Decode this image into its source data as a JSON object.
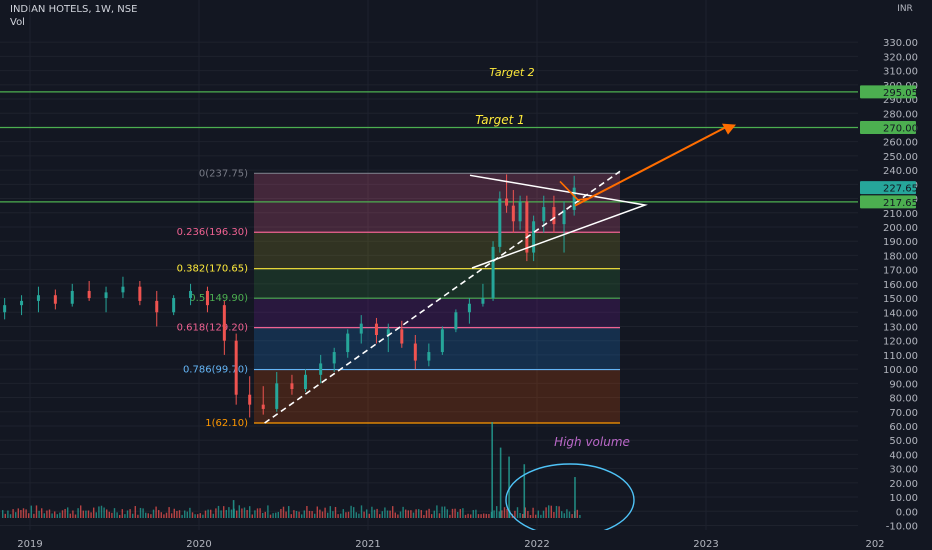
{
  "header": {
    "title": "INDIAN HOTELS, 1W, NSE",
    "volume_label": "Vol"
  },
  "chart_data": {
    "type": "candlestick",
    "symbol": "INDIAN HOTELS",
    "interval": "1W",
    "exchange": "NSE",
    "currency": "INR",
    "price_axis": {
      "min": -10,
      "max": 330,
      "step": 10
    },
    "time_axis_labels": [
      "2019",
      "2020",
      "2021",
      "2022",
      "2023",
      "202"
    ],
    "price_labels": [
      {
        "value": 295.05,
        "text": "295.05",
        "color": "#4caf50"
      },
      {
        "value": 270,
        "text": "270.00",
        "color": "#4caf50"
      },
      {
        "value": 227.65,
        "text": "227.65",
        "color": "#26a69a"
      },
      {
        "value": 217.65,
        "text": "217.65",
        "color": "#4caf50"
      }
    ],
    "horizontal_lines": [
      295.05,
      270,
      217.65
    ],
    "fibonacci_levels": [
      {
        "ratio": "0",
        "price": 237.75,
        "label": "0(237.75)",
        "color": "#787b86"
      },
      {
        "ratio": "0.236",
        "price": 196.3,
        "label": "0.236(196.30)",
        "color": "#f06292"
      },
      {
        "ratio": "0.382",
        "price": 170.65,
        "label": "0.382(170.65)",
        "color": "#ffeb3b"
      },
      {
        "ratio": "0.5",
        "price": 149.9,
        "label": "0.5(149.90)",
        "color": "#4caf50"
      },
      {
        "ratio": "0.618",
        "price": 129.2,
        "label": "0.618(129.20)",
        "color": "#f06292"
      },
      {
        "ratio": "0.786",
        "price": 99.7,
        "label": "0.786(99.70)",
        "color": "#64b5f6"
      },
      {
        "ratio": "1",
        "price": 62.1,
        "label": "1(62.10)",
        "color": "#ff9800"
      }
    ],
    "annotations": [
      "Target 2",
      "Target 1",
      "High volume"
    ],
    "visible_candles": [
      [
        2018.85,
        140,
        150,
        135,
        145
      ],
      [
        2018.95,
        145,
        152,
        138,
        148
      ],
      [
        2019.05,
        148,
        158,
        140,
        152
      ],
      [
        2019.15,
        152,
        156,
        142,
        146
      ],
      [
        2019.25,
        146,
        160,
        144,
        155
      ],
      [
        2019.35,
        155,
        162,
        148,
        150
      ],
      [
        2019.45,
        150,
        158,
        140,
        154
      ],
      [
        2019.55,
        154,
        165,
        150,
        158
      ],
      [
        2019.65,
        158,
        162,
        145,
        148
      ],
      [
        2019.75,
        148,
        155,
        130,
        140
      ],
      [
        2019.85,
        140,
        152,
        138,
        150
      ],
      [
        2019.95,
        150,
        160,
        145,
        155
      ],
      [
        2020.05,
        155,
        158,
        140,
        145
      ],
      [
        2020.15,
        145,
        148,
        110,
        120
      ],
      [
        2020.22,
        120,
        125,
        75,
        82
      ],
      [
        2020.3,
        82,
        95,
        66,
        75
      ],
      [
        2020.38,
        75,
        88,
        68,
        72
      ],
      [
        2020.46,
        72,
        98,
        70,
        90
      ],
      [
        2020.55,
        90,
        96,
        82,
        86
      ],
      [
        2020.63,
        86,
        100,
        84,
        96
      ],
      [
        2020.72,
        96,
        110,
        90,
        104
      ],
      [
        2020.8,
        104,
        115,
        98,
        112
      ],
      [
        2020.88,
        112,
        128,
        108,
        125
      ],
      [
        2020.96,
        125,
        138,
        118,
        132
      ],
      [
        2021.05,
        132,
        136,
        118,
        124
      ],
      [
        2021.12,
        124,
        132,
        112,
        128
      ],
      [
        2021.2,
        128,
        134,
        115,
        118
      ],
      [
        2021.28,
        118,
        124,
        100,
        106
      ],
      [
        2021.36,
        106,
        118,
        102,
        112
      ],
      [
        2021.44,
        112,
        130,
        110,
        128
      ],
      [
        2021.52,
        128,
        142,
        126,
        140
      ],
      [
        2021.6,
        140,
        150,
        132,
        146
      ],
      [
        2021.68,
        146,
        160,
        144,
        150
      ],
      [
        2021.74,
        150,
        190,
        148,
        186
      ],
      [
        2021.78,
        186,
        225,
        182,
        220
      ],
      [
        2021.82,
        220,
        237,
        210,
        215
      ],
      [
        2021.86,
        215,
        226,
        196,
        204
      ],
      [
        2021.9,
        204,
        222,
        198,
        218
      ],
      [
        2021.94,
        218,
        222,
        176,
        182
      ],
      [
        2021.98,
        182,
        208,
        176,
        204
      ],
      [
        2022.04,
        204,
        222,
        196,
        214
      ],
      [
        2022.1,
        214,
        222,
        196,
        202
      ],
      [
        2022.16,
        202,
        218,
        182,
        212
      ],
      [
        2022.22,
        212,
        236,
        208,
        227.65
      ]
    ],
    "volume_spikes": [
      {
        "x": 2020.2,
        "value": 14
      },
      {
        "x": 2021.73,
        "value": 75
      },
      {
        "x": 2021.78,
        "value": 55
      },
      {
        "x": 2021.83,
        "value": 48
      },
      {
        "x": 2021.92,
        "value": 42
      },
      {
        "x": 2022.22,
        "value": 32
      }
    ]
  }
}
